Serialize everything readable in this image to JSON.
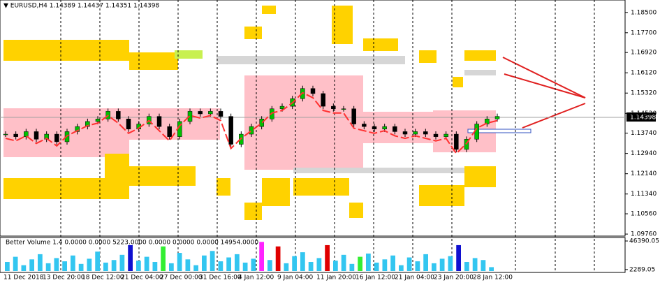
{
  "header": "▼ EURUSD,H4  1.14389 1.14437 1.14351 1.14398",
  "current_price": "1.14398",
  "price": {
    "ylim": [
      1.0968,
      1.1899
    ],
    "yticks": [
      {
        "value": 1.185,
        "label": "1.18500"
      },
      {
        "value": 1.177,
        "label": "1.17700"
      },
      {
        "value": 1.1692,
        "label": "1.16920"
      },
      {
        "value": 1.1612,
        "label": "1.16120"
      },
      {
        "value": 1.1532,
        "label": "1.15320"
      },
      {
        "value": 1.1452,
        "label": "1.14520"
      },
      {
        "value": 1.1374,
        "label": "1.13740"
      },
      {
        "value": 1.1294,
        "label": "1.12940"
      },
      {
        "value": 1.1214,
        "label": "1.12140"
      },
      {
        "value": 1.1134,
        "label": "1.11340"
      },
      {
        "value": 1.1056,
        "label": "1.10560"
      },
      {
        "value": 1.0976,
        "label": "1.09760"
      }
    ],
    "closes": [
      1.137,
      1.136,
      1.138,
      1.135,
      1.137,
      1.134,
      1.138,
      1.14,
      1.142,
      1.143,
      1.146,
      1.143,
      1.139,
      1.141,
      1.144,
      1.14,
      1.136,
      1.142,
      1.146,
      1.145,
      1.146,
      1.144,
      1.133,
      1.137,
      1.14,
      1.143,
      1.147,
      1.148,
      1.151,
      1.155,
      1.153,
      1.148,
      1.147,
      1.147,
      1.141,
      1.14,
      1.139,
      1.14,
      1.138,
      1.137,
      1.138,
      1.137,
      1.136,
      1.137,
      1.131,
      1.135,
      1.141,
      1.143,
      1.144
    ]
  },
  "xaxis": [
    "11 Dec 2018",
    "13 Dec 20:00",
    "18 Dec 12:00",
    "21 Dec 04:00",
    "27 Dec 00:00",
    "31 Dec 16:00",
    "4 Jan 12:00",
    "9 Jan 04:00",
    "11 Jan 20:00",
    "16 Jan 12:00",
    "21 Jan 04:00",
    "23 Jan 20:00",
    "28 Jan 12:00"
  ],
  "volume": {
    "label": "Better Volume 1.4 0.0000 0.0000 5223.0000 0.0000 0.0000 0.0000 14954.0000",
    "ylim": [
      0,
      46390.05
    ],
    "yticks": [
      {
        "value": 46390.05,
        "label": "46390.05"
      },
      {
        "value": 2289.05,
        "label": "2289.05"
      }
    ],
    "values": [
      14000,
      22000,
      9000,
      18000,
      26000,
      12000,
      20000,
      15000,
      24000,
      11000,
      19000,
      30000,
      13000,
      17000,
      25000,
      40000,
      16000,
      22000,
      14000,
      38000,
      12000,
      28000,
      18000,
      9000,
      24000,
      31000,
      15000,
      21000,
      26000,
      13000,
      19000,
      45000,
      17000,
      38000,
      12000,
      23000,
      29000,
      14000,
      20000,
      40000,
      16000,
      25000,
      11000,
      22000,
      27000,
      13000,
      18000,
      24000,
      9000,
      21000,
      15000,
      26000,
      12000,
      19000,
      23000,
      40000,
      14000,
      20000,
      17000,
      6000
    ],
    "colors": [
      "#33c6f0",
      "#33c6f0",
      "#33c6f0",
      "#33c6f0",
      "#33c6f0",
      "#33c6f0",
      "#33c6f0",
      "#33c6f0",
      "#33c6f0",
      "#33c6f0",
      "#33c6f0",
      "#33c6f0",
      "#33c6f0",
      "#33c6f0",
      "#33c6f0",
      "#1010d0",
      "#33c6f0",
      "#33c6f0",
      "#33c6f0",
      "#33ee33",
      "#33c6f0",
      "#33c6f0",
      "#33c6f0",
      "#33c6f0",
      "#33c6f0",
      "#33c6f0",
      "#33c6f0",
      "#33c6f0",
      "#33c6f0",
      "#33c6f0",
      "#33c6f0",
      "#ff22ff",
      "#33c6f0",
      "#e00000",
      "#33c6f0",
      "#33c6f0",
      "#33c6f0",
      "#33c6f0",
      "#33c6f0",
      "#e00000",
      "#33c6f0",
      "#33c6f0",
      "#33c6f0",
      "#33ee33",
      "#33c6f0",
      "#33c6f0",
      "#33c6f0",
      "#33c6f0",
      "#33c6f0",
      "#33c6f0",
      "#33c6f0",
      "#33c6f0",
      "#33c6f0",
      "#33c6f0",
      "#33c6f0",
      "#1010d0",
      "#33c6f0",
      "#33c6f0",
      "#33c6f0",
      "#33c6f0"
    ]
  }
}
